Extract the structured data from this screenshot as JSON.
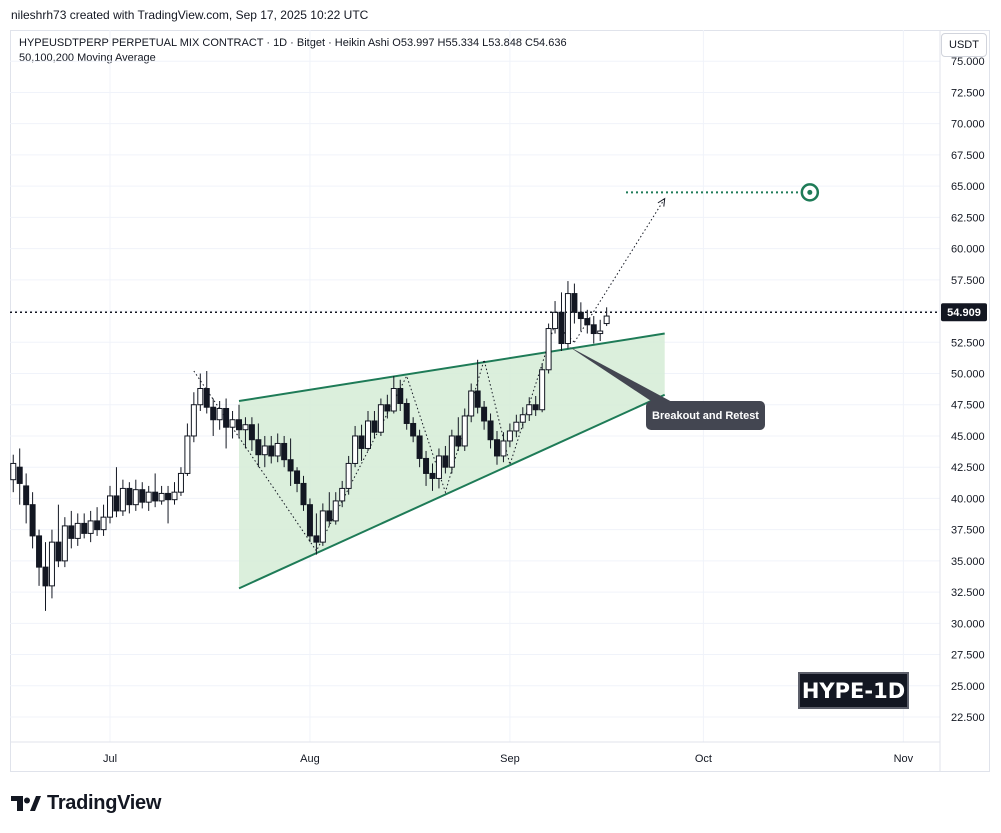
{
  "header": {
    "credit": "nileshrh73 created with TradingView.com, Sep 17, 2025 10:22 UTC",
    "legend_line1": "HYPEUSDTPERP PERPETUAL MIX CONTRACT · 1D · Bitget · Heikin Ashi  O53.997  H55.334  L53.848  C54.636",
    "legend_line2": "50,100,200 Moving Average",
    "currency_button": "USDT"
  },
  "footer": {
    "brand": "TradingView"
  },
  "colors": {
    "candle": "#131722",
    "pattern_fill": "#d5ecd6",
    "trendline": "#1e7b57",
    "target": "#1e7b57",
    "callout_bg": "#434651",
    "price_badge_bg": "#131722"
  },
  "chart_data": {
    "type": "candlestick",
    "ylim": [
      20.5,
      77.5
    ],
    "y_ticks": [
      "75.000",
      "72.500",
      "70.000",
      "67.500",
      "65.000",
      "62.500",
      "60.000",
      "57.500",
      "55.000",
      "52.500",
      "50.000",
      "47.500",
      "45.000",
      "42.500",
      "40.000",
      "37.500",
      "35.000",
      "32.500",
      "30.000",
      "27.500",
      "25.000",
      "22.500"
    ],
    "x_ticks": [
      {
        "label": "Jul",
        "day": 0
      },
      {
        "label": "Aug",
        "day": 31
      },
      {
        "label": "Sep",
        "day": 62
      },
      {
        "label": "Oct",
        "day": 92
      },
      {
        "label": "Nov",
        "day": 123
      }
    ],
    "last_price": "54.909",
    "last_price_value": 54.909,
    "watermark": "HYPE-1D",
    "annotation": "Breakout and Retest",
    "target_price": 64.5,
    "pattern": {
      "upper": [
        [
          20,
          47.8
        ],
        [
          86,
          53.2
        ]
      ],
      "lower": [
        [
          20,
          32.8
        ],
        [
          86,
          48.3
        ]
      ]
    },
    "zigzag": [
      [
        13,
        50.2
      ],
      [
        32,
        35.8
      ],
      [
        46,
        49.8
      ],
      [
        52,
        40.5
      ],
      [
        58,
        51.1
      ],
      [
        62,
        42.7
      ],
      [
        69,
        54.0
      ],
      [
        72,
        52.5
      ]
    ],
    "projection": [
      [
        72,
        52.5
      ],
      [
        86,
        64.0
      ]
    ],
    "candles": [
      [
        -15,
        41.5,
        42.8,
        43.5,
        40.5
      ],
      [
        -14,
        42.5,
        41.2,
        44.0,
        39.5
      ],
      [
        -13,
        41.0,
        39.5,
        42.0,
        38.0
      ],
      [
        -12,
        39.5,
        37.0,
        40.5,
        36.0
      ],
      [
        -11,
        37.0,
        34.5,
        37.5,
        33.0
      ],
      [
        -10,
        34.5,
        33.0,
        36.5,
        31.0
      ],
      [
        -9,
        33.0,
        36.5,
        37.5,
        32.0
      ],
      [
        -8,
        36.5,
        35.0,
        39.5,
        34.5
      ],
      [
        -7,
        35.0,
        37.8,
        38.5,
        34.5
      ],
      [
        -6,
        37.8,
        36.8,
        39.0,
        36.0
      ],
      [
        -5,
        36.8,
        38.0,
        38.8,
        36.2
      ],
      [
        -4,
        38.0,
        37.2,
        38.8,
        36.8
      ],
      [
        -3,
        37.2,
        38.2,
        39.0,
        36.5
      ],
      [
        -2,
        38.2,
        37.5,
        39.3,
        37.0
      ],
      [
        -1,
        37.5,
        38.5,
        39.5,
        37.0
      ],
      [
        0,
        38.5,
        40.2,
        41.0,
        38.0
      ],
      [
        1,
        40.2,
        39.0,
        42.5,
        38.5
      ],
      [
        2,
        39.0,
        40.8,
        41.5,
        38.6
      ],
      [
        3,
        40.8,
        39.5,
        41.3,
        38.8
      ],
      [
        4,
        39.5,
        40.7,
        41.5,
        39.0
      ],
      [
        5,
        40.7,
        39.7,
        41.3,
        39.2
      ],
      [
        6,
        39.7,
        40.5,
        41.0,
        39.0
      ],
      [
        7,
        40.5,
        39.8,
        42.0,
        39.3
      ],
      [
        8,
        39.8,
        40.4,
        41.0,
        39.5
      ],
      [
        9,
        40.4,
        39.9,
        41.0,
        38.0
      ],
      [
        10,
        39.9,
        40.5,
        41.3,
        39.5
      ],
      [
        11,
        40.5,
        42.0,
        42.5,
        40.2
      ],
      [
        12,
        42.0,
        45.0,
        46.0,
        41.8
      ],
      [
        13,
        45.0,
        47.5,
        48.5,
        44.5
      ],
      [
        14,
        47.5,
        48.8,
        50.0,
        47.0
      ],
      [
        15,
        48.8,
        47.3,
        50.2,
        46.8
      ],
      [
        16,
        47.3,
        46.3,
        48.0,
        45.0
      ],
      [
        17,
        46.3,
        47.2,
        47.8,
        45.5
      ],
      [
        18,
        47.2,
        45.7,
        48.0,
        44.0
      ],
      [
        19,
        45.7,
        46.3,
        47.0,
        44.8
      ],
      [
        20,
        46.3,
        45.5,
        47.5,
        44.8
      ],
      [
        21,
        45.5,
        45.9,
        46.5,
        44.0
      ],
      [
        22,
        45.9,
        44.7,
        46.5,
        43.8
      ],
      [
        23,
        44.7,
        43.5,
        46.0,
        42.5
      ],
      [
        24,
        43.5,
        44.2,
        45.0,
        42.5
      ],
      [
        25,
        44.2,
        43.4,
        45.0,
        42.8
      ],
      [
        26,
        43.4,
        44.4,
        45.2,
        42.9
      ],
      [
        27,
        44.4,
        43.1,
        45.0,
        42.5
      ],
      [
        28,
        43.1,
        42.2,
        44.8,
        41.0
      ],
      [
        29,
        42.2,
        41.2,
        42.5,
        40.5
      ],
      [
        30,
        41.2,
        39.5,
        41.8,
        39.0
      ],
      [
        31,
        39.5,
        37.0,
        40.0,
        36.5
      ],
      [
        32,
        37.0,
        36.5,
        38.8,
        35.5
      ],
      [
        33,
        36.5,
        39.0,
        39.6,
        36.2
      ],
      [
        34,
        39.0,
        38.2,
        40.5,
        37.8
      ],
      [
        35,
        38.2,
        39.8,
        40.5,
        37.9
      ],
      [
        36,
        39.8,
        40.8,
        41.4,
        39.3
      ],
      [
        37,
        40.8,
        42.8,
        43.4,
        40.3
      ],
      [
        38,
        42.8,
        45.0,
        45.8,
        42.5
      ],
      [
        39,
        45.0,
        44.0,
        45.9,
        43.0
      ],
      [
        40,
        44.0,
        46.2,
        47.0,
        43.8
      ],
      [
        41,
        46.2,
        45.3,
        47.0,
        44.8
      ],
      [
        42,
        45.3,
        47.5,
        48.0,
        45.0
      ],
      [
        43,
        47.5,
        47.0,
        48.3,
        46.4
      ],
      [
        44,
        47.0,
        48.8,
        49.8,
        46.8
      ],
      [
        45,
        48.8,
        47.6,
        49.5,
        47.0
      ],
      [
        46,
        47.6,
        46.0,
        48.0,
        45.5
      ],
      [
        47,
        46.0,
        45.0,
        46.5,
        44.5
      ],
      [
        48,
        45.0,
        43.2,
        45.5,
        42.5
      ],
      [
        49,
        43.2,
        42.0,
        43.8,
        41.0
      ],
      [
        50,
        42.0,
        41.6,
        42.8,
        40.6
      ],
      [
        51,
        41.6,
        43.4,
        44.0,
        40.8
      ],
      [
        52,
        43.4,
        42.5,
        44.2,
        42.0
      ],
      [
        53,
        42.5,
        45.0,
        45.5,
        42.0
      ],
      [
        54,
        45.0,
        44.2,
        46.5,
        43.8
      ],
      [
        55,
        44.2,
        46.6,
        47.2,
        43.8
      ],
      [
        56,
        46.6,
        48.6,
        49.2,
        46.1
      ],
      [
        57,
        48.6,
        47.3,
        51.1,
        46.8
      ],
      [
        58,
        47.3,
        46.2,
        47.8,
        45.5
      ],
      [
        59,
        46.2,
        44.7,
        46.8,
        44.0
      ],
      [
        60,
        44.7,
        43.4,
        45.4,
        42.7
      ],
      [
        61,
        43.4,
        44.6,
        45.3,
        42.9
      ],
      [
        62,
        44.6,
        45.4,
        46.0,
        44.1
      ],
      [
        63,
        45.4,
        46.1,
        46.7,
        44.9
      ],
      [
        64,
        46.1,
        46.7,
        47.3,
        45.6
      ],
      [
        65,
        46.7,
        47.5,
        48.1,
        46.2
      ],
      [
        66,
        47.5,
        47.1,
        48.2,
        46.6
      ],
      [
        67,
        47.1,
        50.3,
        50.8,
        46.9
      ],
      [
        68,
        50.3,
        53.6,
        54.0,
        50.0
      ],
      [
        69,
        53.6,
        54.9,
        55.8,
        53.2
      ],
      [
        70,
        54.9,
        52.4,
        56.5,
        51.8
      ],
      [
        71,
        52.4,
        56.4,
        57.4,
        52.0
      ],
      [
        72,
        56.4,
        54.9,
        57.2,
        54.0
      ],
      [
        73,
        54.9,
        54.4,
        55.7,
        53.4
      ],
      [
        74,
        54.4,
        53.9,
        55.1,
        53.2
      ],
      [
        75,
        53.9,
        53.2,
        54.6,
        52.4
      ],
      [
        76,
        53.2,
        53.4,
        54.3,
        52.6
      ],
      [
        77,
        54.0,
        54.6,
        55.3,
        53.8
      ]
    ]
  }
}
